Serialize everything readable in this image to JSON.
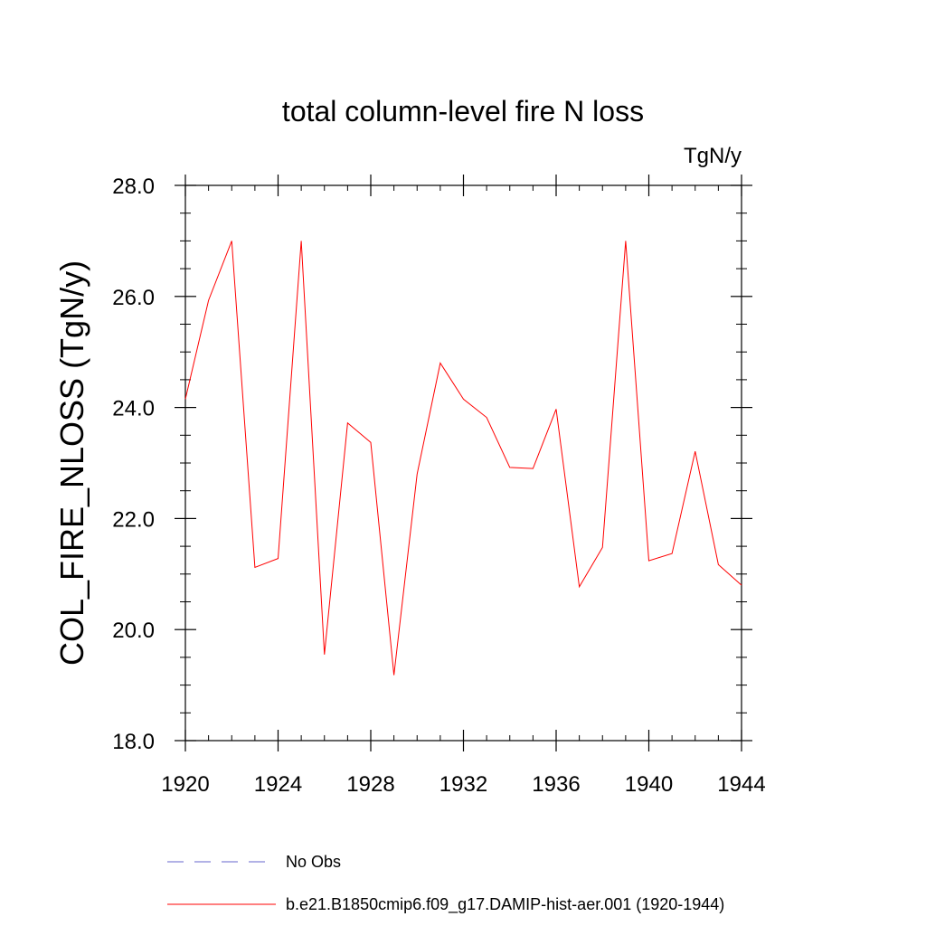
{
  "chart_data": {
    "type": "line",
    "title": "total column-level fire N loss",
    "units_label": "TgN/y",
    "ylabel": "COL_FIRE_NLOSS  (TgN/y)",
    "xlabel": "",
    "xlim": [
      1920,
      1944
    ],
    "ylim": [
      18.0,
      28.0
    ],
    "x_ticks": [
      1920,
      1924,
      1928,
      1932,
      1936,
      1940,
      1944
    ],
    "y_ticks": [
      "18.0",
      "20.0",
      "22.0",
      "24.0",
      "26.0",
      "28.0"
    ],
    "grid": false,
    "legend_position": "bottom",
    "series": [
      {
        "name": "b.e21.B1850cmip6.f09_g17.DAMIP-hist-aer.001 (1920-1944)",
        "color": "#ff0000",
        "style": "solid",
        "x": [
          1920,
          1921,
          1922,
          1923,
          1924,
          1925,
          1926,
          1927,
          1928,
          1929,
          1930,
          1931,
          1932,
          1933,
          1934,
          1935,
          1936,
          1937,
          1938,
          1939,
          1940,
          1941,
          1942,
          1943,
          1944
        ],
        "values": [
          24.15,
          25.93,
          27.0,
          21.12,
          21.28,
          27.0,
          19.55,
          23.72,
          23.37,
          19.18,
          22.8,
          24.8,
          24.15,
          23.82,
          22.92,
          22.9,
          23.97,
          20.77,
          21.48,
          27.0,
          21.24,
          21.37,
          23.21,
          21.17,
          20.8
        ]
      },
      {
        "name": "No Obs",
        "color": "#6666cc",
        "style": "dashed",
        "x": [],
        "values": []
      }
    ]
  }
}
